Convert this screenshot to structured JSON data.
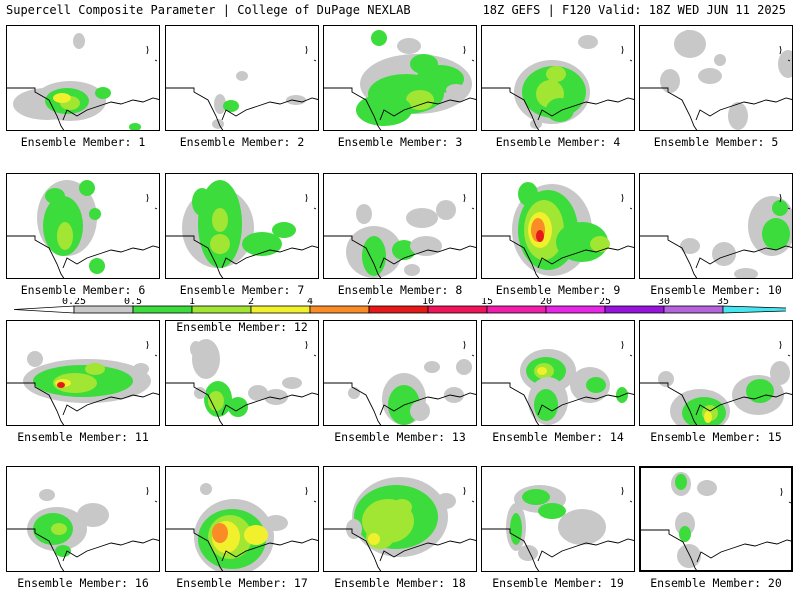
{
  "header": {
    "left": "Supercell Composite Parameter | College of DuPage NEXLAB",
    "right": "18Z GEFS | F120 Valid: 18Z WED JUN 11 2025"
  },
  "colorbar": {
    "levels": [
      "0.25",
      "0.5",
      "1",
      "2",
      "4",
      "7",
      "10",
      "15",
      "20",
      "25",
      "30",
      "35"
    ],
    "colors": [
      "#c8c8c8",
      "#3cdc3c",
      "#a0e632",
      "#f0f02d",
      "#fa8c28",
      "#e61919",
      "#f0145a",
      "#f01eaa",
      "#e628e6",
      "#9614dc",
      "#b464dc",
      "#46e6f0"
    ]
  },
  "palette": {
    "gray": "#c8c8c8",
    "green": "#3cdc3c",
    "lime": "#a0e632",
    "yellow": "#f0f02d",
    "orange": "#fa8c28",
    "red": "#e61919"
  },
  "members": [
    {
      "label": "Ensemble Member: 1",
      "selected": false
    },
    {
      "label": "Ensemble Member: 2",
      "selected": false
    },
    {
      "label": "Ensemble Member: 3",
      "selected": false
    },
    {
      "label": "Ensemble Member: 4",
      "selected": false
    },
    {
      "label": "Ensemble Member: 5",
      "selected": false
    },
    {
      "label": "Ensemble Member: 6",
      "selected": false
    },
    {
      "label": "Ensemble Member: 7",
      "selected": false
    },
    {
      "label": "Ensemble Member: 8",
      "selected": false
    },
    {
      "label": "Ensemble Member: 9",
      "selected": false
    },
    {
      "label": "Ensemble Member: 10",
      "selected": false
    },
    {
      "label": "Ensemble Member: 11",
      "selected": false
    },
    {
      "label": "Ensemble Member: 12",
      "selected": false
    },
    {
      "label": "Ensemble Member: 13",
      "selected": false
    },
    {
      "label": "Ensemble Member: 14",
      "selected": false
    },
    {
      "label": "Ensemble Member: 15",
      "selected": false
    },
    {
      "label": "Ensemble Member: 16",
      "selected": false
    },
    {
      "label": "Ensemble Member: 17",
      "selected": false
    },
    {
      "label": "Ensemble Member: 18",
      "selected": false
    },
    {
      "label": "Ensemble Member: 19",
      "selected": false
    },
    {
      "label": "Ensemble Member: 20",
      "selected": true
    }
  ]
}
